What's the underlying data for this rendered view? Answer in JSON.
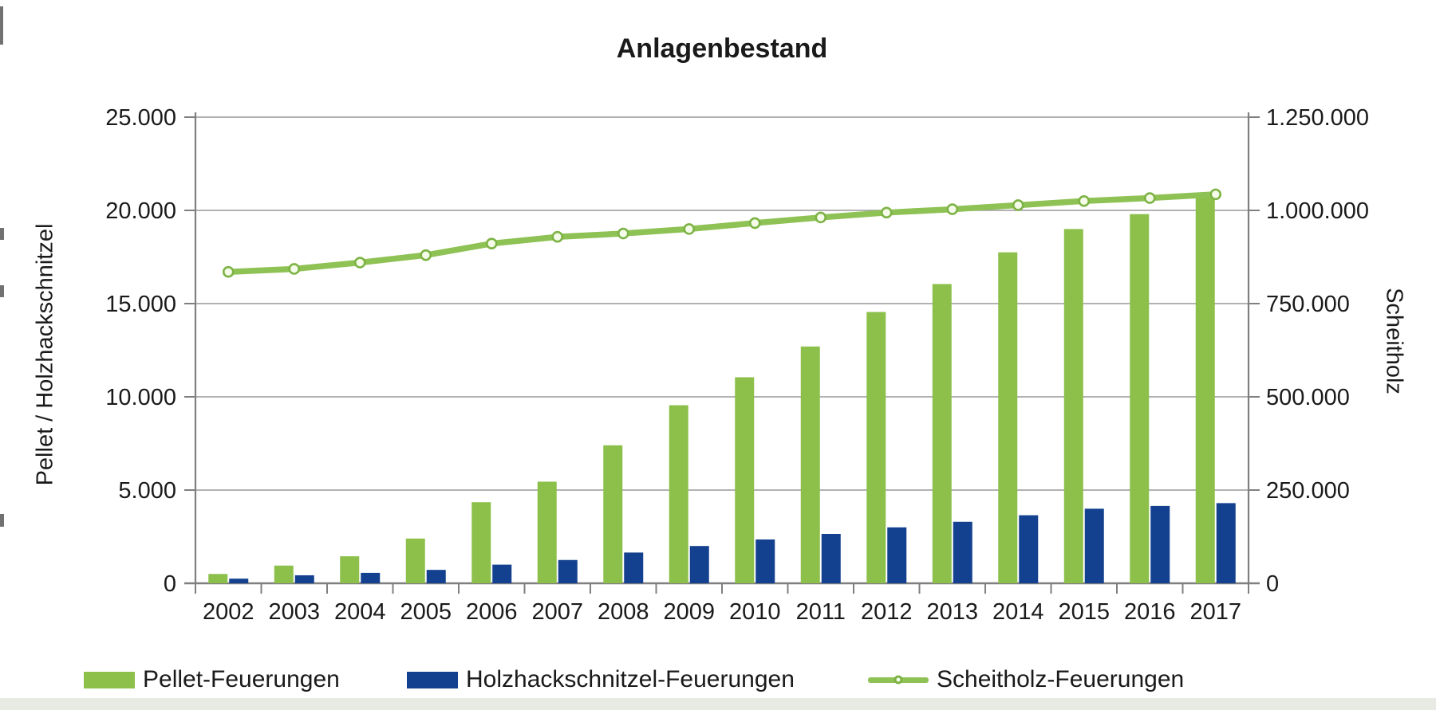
{
  "title": "Anlagenbestand",
  "chart_data": {
    "type": "bar",
    "subtype": "combo-bar-line",
    "title": "Anlagenbestand",
    "categories": [
      "2002",
      "2003",
      "2004",
      "2005",
      "2006",
      "2007",
      "2008",
      "2009",
      "2010",
      "2011",
      "2012",
      "2013",
      "2014",
      "2015",
      "2016",
      "2017"
    ],
    "series": [
      {
        "name": "Pellet-Feuerungen",
        "type": "bar",
        "axis": "left",
        "color": "#8dc04b",
        "values": [
          500,
          950,
          1450,
          2400,
          4350,
          5450,
          7400,
          9550,
          11050,
          12700,
          14550,
          16050,
          17750,
          19000,
          19800,
          20850
        ]
      },
      {
        "name": "Holzhackschnitzel-Feuerungen",
        "type": "bar",
        "axis": "left",
        "color": "#14418f",
        "values": [
          250,
          430,
          560,
          720,
          1000,
          1250,
          1650,
          2000,
          2350,
          2650,
          3000,
          3300,
          3650,
          4000,
          4150,
          4300
        ]
      },
      {
        "name": "Scheitholz-Feuerungen",
        "type": "line",
        "axis": "right",
        "color": "#8fc255",
        "marker": "open-circle",
        "marker_fill": "#f5fbe9",
        "marker_stroke": "#7db344",
        "values": [
          835000,
          843000,
          860000,
          880000,
          911000,
          929000,
          938000,
          950000,
          966000,
          981000,
          994000,
          1003000,
          1014000,
          1025000,
          1033000,
          1043000
        ]
      }
    ],
    "left_axis": {
      "title": "Pellet / Holzhackschnitzel",
      "min": 0,
      "max": 25000,
      "ticks": [
        "0",
        "5.000",
        "10.000",
        "15.000",
        "20.000",
        "25.000"
      ]
    },
    "right_axis": {
      "title": "Scheitholz",
      "min": 0,
      "max": 1250000,
      "ticks": [
        "0",
        "250.000",
        "500.000",
        "750.000",
        "1.000.000",
        "1.250.000"
      ]
    },
    "grid": true,
    "legend_position": "bottom"
  },
  "colors": {
    "grid": "#999999",
    "axis": "#7f7f7f",
    "text": "#1a1a1a",
    "bottom_strip": "#e8ebe3"
  }
}
